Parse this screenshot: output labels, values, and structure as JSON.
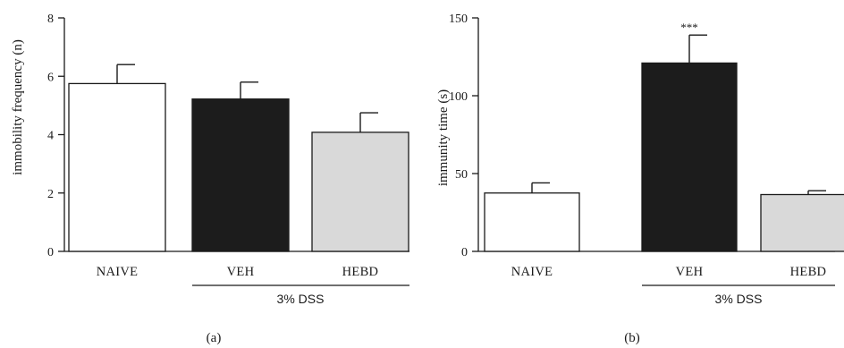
{
  "colors": {
    "naive": "#ffffff",
    "veh": "#1c1c1c",
    "hebd": "#d9d9d9",
    "stroke": "#1a1a1a"
  },
  "chart_data": [
    {
      "type": "bar",
      "panel_label": "(a)",
      "ylabel": "immobility frequency (n)",
      "ylim": [
        0,
        8
      ],
      "yticks": [
        0,
        2,
        4,
        6,
        8
      ],
      "categories": [
        "NAIVE",
        "VEH",
        "HEBD"
      ],
      "values": [
        5.75,
        5.22,
        4.08
      ],
      "errors": [
        0.65,
        0.58,
        0.67
      ],
      "fills": [
        "naive",
        "veh",
        "hebd"
      ],
      "annotations": [
        "",
        "",
        ""
      ],
      "group_label": "3% DSS",
      "group_categories": [
        "VEH",
        "HEBD"
      ]
    },
    {
      "type": "bar",
      "panel_label": "(b)",
      "ylabel": "immunity time (s)",
      "ylim": [
        0,
        150
      ],
      "yticks": [
        0,
        50,
        100,
        150
      ],
      "categories": [
        "NAIVE",
        "VEH",
        "HEBD"
      ],
      "values": [
        37.5,
        121,
        36.5
      ],
      "errors": [
        6.5,
        18,
        2.5
      ],
      "fills": [
        "naive",
        "veh",
        "hebd"
      ],
      "annotations": [
        "",
        "***",
        ""
      ],
      "group_label": "3% DSS",
      "group_categories": [
        "VEH",
        "HEBD"
      ]
    }
  ]
}
